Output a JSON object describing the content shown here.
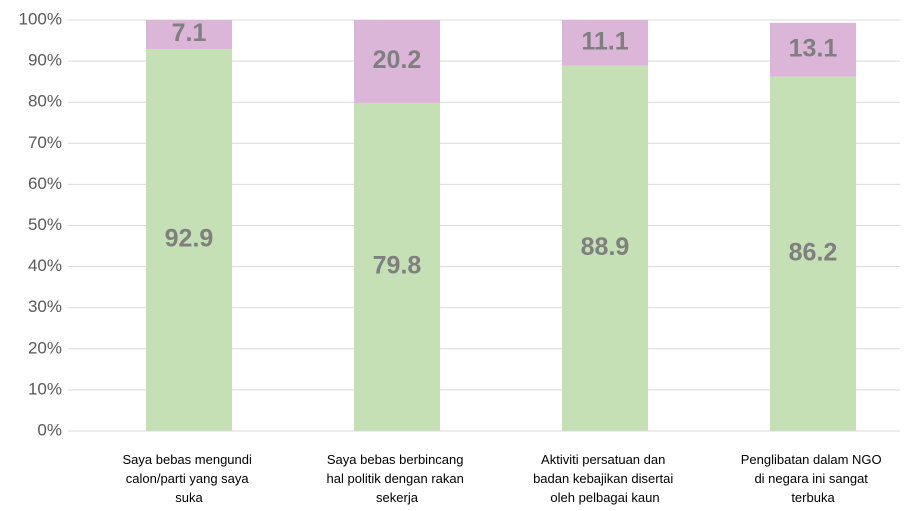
{
  "chart_data": {
    "type": "stacked_bar",
    "categories": [
      "Saya bebas mengundi\ncalon/parti yang saya\nsuka",
      "Saya bebas berbincang\nhal politik dengan rakan\nsekerja",
      "Aktiviti persatuan dan\nbadan kebajikan disertai\noleh pelbagai kaun",
      "Penglibatan dalam NGO\ndi negara ini sangat\nterbuka"
    ],
    "series": [
      {
        "color": "#c5e0b4",
        "values": [
          92.9,
          79.8,
          88.9,
          86.2
        ]
      },
      {
        "color": "#dbb6d9",
        "values": [
          7.1,
          20.2,
          11.1,
          13.1
        ]
      }
    ],
    "ylim": [
      0,
      100
    ],
    "yticks": [
      {
        "value": 0,
        "label": "0%"
      },
      {
        "value": 10,
        "label": "10%"
      },
      {
        "value": 20,
        "label": "20%"
      },
      {
        "value": 30,
        "label": "30%"
      },
      {
        "value": 40,
        "label": "40%"
      },
      {
        "value": 50,
        "label": "50%"
      },
      {
        "value": 60,
        "label": "60%"
      },
      {
        "value": 70,
        "label": "70%"
      },
      {
        "value": 80,
        "label": "80%"
      },
      {
        "value": 90,
        "label": "90%"
      },
      {
        "value": 100,
        "label": "100%"
      }
    ],
    "grid": true
  }
}
